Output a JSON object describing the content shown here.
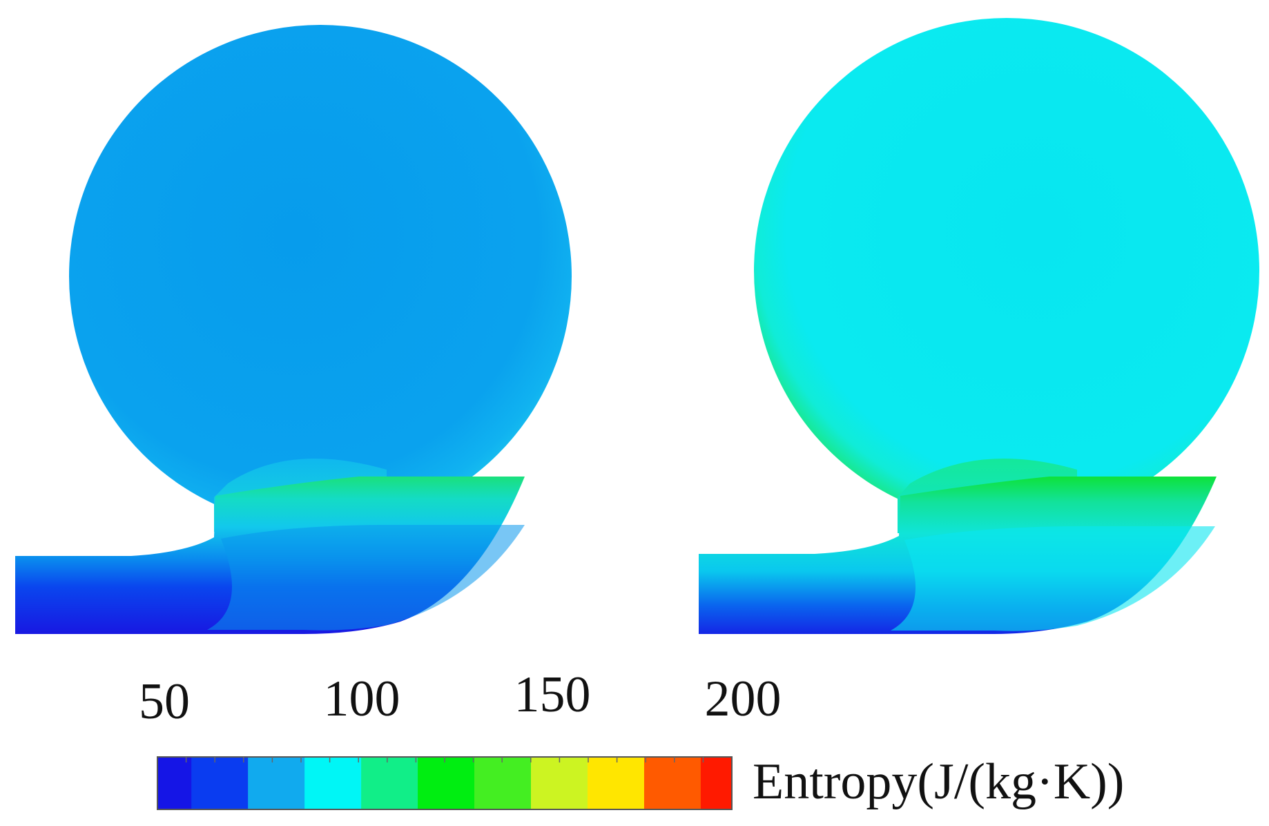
{
  "legend": {
    "title": "Entropy(J/(kg·K))",
    "ticks": [
      "50",
      "100",
      "150",
      "200"
    ],
    "range": [
      50,
      200
    ],
    "bands": [
      "#1515e6",
      "#0a3cf0",
      "#11aaee",
      "#00f6f6",
      "#11ee88",
      "#00ee11",
      "#44ee22",
      "#ccf422",
      "#ffe600",
      "#ff5a00",
      "#ff1a00"
    ]
  },
  "panels": [
    {
      "name": "left-volute",
      "colors": {
        "core": "#0aa0ee",
        "core_light": "#16b0f2",
        "edge": "#18c8ee",
        "outlet_top": "#18e07a",
        "outlet_mid": "#12d6dc",
        "outlet_bottom": "#1420e8"
      }
    },
    {
      "name": "right-volute",
      "colors": {
        "core": "#0ae8f0",
        "core_light": "#12f0f2",
        "edge": "#18e878",
        "outlet_top": "#10e234",
        "outlet_mid": "#10e0d6",
        "outlet_bottom": "#1436ea"
      }
    }
  ]
}
